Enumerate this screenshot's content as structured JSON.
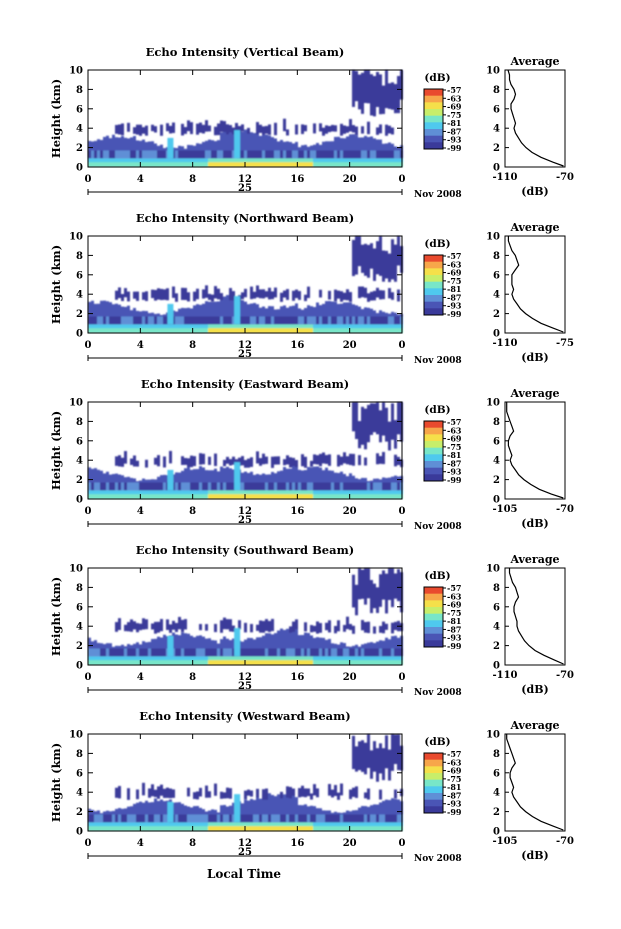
{
  "chart_data": [
    {
      "type": "heatmap",
      "title": "Echo Intensity (Vertical Beam)",
      "ylabel": "Height (km)",
      "ylim": [
        0,
        10
      ],
      "yticks": [
        "0",
        "2",
        "4",
        "6",
        "8",
        "10"
      ],
      "xlim": [
        0,
        24
      ],
      "xticks": [
        "0",
        "4",
        "8",
        "12",
        "16",
        "20",
        "0"
      ],
      "date_label": "25",
      "month_label": "Nov 2008",
      "colorbar": {
        "label": "(dB)",
        "ticks": [
          "-57",
          "-63",
          "-69",
          "-75",
          "-81",
          "-87",
          "-93",
          "-99"
        ]
      },
      "average": {
        "title": "Average",
        "xlabel": "(dB)",
        "xticks": [
          "-110",
          "-70"
        ],
        "xlim": [
          -110,
          -70
        ],
        "profile": [
          [
            0.1,
            -71
          ],
          [
            0.5,
            -78
          ],
          [
            1,
            -86
          ],
          [
            1.5,
            -92
          ],
          [
            2,
            -96
          ],
          [
            2.5,
            -99
          ],
          [
            3,
            -101
          ],
          [
            3.5,
            -103
          ],
          [
            4,
            -104
          ],
          [
            4.5,
            -103
          ],
          [
            5,
            -104
          ],
          [
            5.5,
            -105
          ],
          [
            6,
            -106
          ],
          [
            6.5,
            -106
          ],
          [
            7,
            -104
          ],
          [
            7.5,
            -103
          ],
          [
            8,
            -104
          ],
          [
            8.5,
            -106
          ],
          [
            9,
            -107
          ],
          [
            9.5,
            -107
          ],
          [
            10,
            -108
          ]
        ]
      }
    },
    {
      "type": "heatmap",
      "title": "Echo Intensity (Northward Beam)",
      "ylabel": "Height (km)",
      "ylim": [
        0,
        10
      ],
      "yticks": [
        "0",
        "2",
        "4",
        "6",
        "8",
        "10"
      ],
      "xlim": [
        0,
        24
      ],
      "xticks": [
        "0",
        "4",
        "8",
        "12",
        "16",
        "20",
        "0"
      ],
      "date_label": "25",
      "month_label": "Nov 2008",
      "colorbar": {
        "label": "(dB)",
        "ticks": [
          "-57",
          "-63",
          "-69",
          "-75",
          "-81",
          "-87",
          "-93",
          "-99"
        ]
      },
      "average": {
        "title": "Average",
        "xlabel": "(dB)",
        "xticks": [
          "-110",
          "-75"
        ],
        "xlim": [
          -110,
          -75
        ],
        "profile": [
          [
            0.1,
            -76
          ],
          [
            0.5,
            -82
          ],
          [
            1,
            -89
          ],
          [
            1.5,
            -94
          ],
          [
            2,
            -98
          ],
          [
            2.5,
            -101
          ],
          [
            3,
            -103
          ],
          [
            3.5,
            -105
          ],
          [
            4,
            -106
          ],
          [
            4.5,
            -105
          ],
          [
            5,
            -106
          ],
          [
            5.5,
            -106
          ],
          [
            6,
            -106
          ],
          [
            6.5,
            -104
          ],
          [
            7,
            -102
          ],
          [
            7.5,
            -103
          ],
          [
            8,
            -104
          ],
          [
            8.5,
            -106
          ],
          [
            9,
            -107
          ],
          [
            9.5,
            -108
          ],
          [
            10,
            -108
          ]
        ]
      }
    },
    {
      "type": "heatmap",
      "title": "Echo Intensity (Eastward Beam)",
      "ylabel": "Height (km)",
      "ylim": [
        0,
        10
      ],
      "yticks": [
        "0",
        "2",
        "4",
        "6",
        "8",
        "10"
      ],
      "xlim": [
        0,
        24
      ],
      "xticks": [
        "0",
        "4",
        "8",
        "12",
        "16",
        "20",
        "0"
      ],
      "date_label": "25",
      "month_label": "Nov 2008",
      "colorbar": {
        "label": "(dB)",
        "ticks": [
          "-57",
          "-63",
          "-69",
          "-75",
          "-81",
          "-87",
          "-93",
          "-99"
        ]
      },
      "average": {
        "title": "Average",
        "xlabel": "(dB)",
        "xticks": [
          "-105",
          "-70"
        ],
        "xlim": [
          -105,
          -70
        ],
        "profile": [
          [
            0.1,
            -71
          ],
          [
            0.5,
            -78
          ],
          [
            1,
            -85
          ],
          [
            1.5,
            -90
          ],
          [
            2,
            -94
          ],
          [
            2.5,
            -97
          ],
          [
            3,
            -99
          ],
          [
            3.5,
            -101
          ],
          [
            4,
            -102
          ],
          [
            4.5,
            -101
          ],
          [
            5,
            -102
          ],
          [
            5.5,
            -103
          ],
          [
            6,
            -103
          ],
          [
            6.5,
            -102
          ],
          [
            7,
            -100
          ],
          [
            7.5,
            -101
          ],
          [
            8,
            -102
          ],
          [
            8.5,
            -103
          ],
          [
            9,
            -104
          ],
          [
            9.5,
            -104
          ],
          [
            10,
            -104
          ]
        ]
      }
    },
    {
      "type": "heatmap",
      "title": "Echo Intensity (Southward Beam)",
      "ylabel": "Height (km)",
      "ylim": [
        0,
        10
      ],
      "yticks": [
        "0",
        "2",
        "4",
        "6",
        "8",
        "10"
      ],
      "xlim": [
        0,
        24
      ],
      "xticks": [
        "0",
        "4",
        "8",
        "12",
        "16",
        "20",
        "0"
      ],
      "date_label": "25",
      "month_label": "Nov 2008",
      "colorbar": {
        "label": "(dB)",
        "ticks": [
          "-57",
          "-63",
          "-69",
          "-75",
          "-81",
          "-87",
          "-93",
          "-99"
        ]
      },
      "average": {
        "title": "Average",
        "xlabel": "(dB)",
        "xticks": [
          "-110",
          "-70"
        ],
        "xlim": [
          -110,
          -70
        ],
        "profile": [
          [
            0.1,
            -71
          ],
          [
            0.5,
            -77
          ],
          [
            1,
            -84
          ],
          [
            1.5,
            -90
          ],
          [
            2,
            -94
          ],
          [
            2.5,
            -97
          ],
          [
            3,
            -99
          ],
          [
            3.5,
            -101
          ],
          [
            4,
            -102
          ],
          [
            4.5,
            -102
          ],
          [
            5,
            -103
          ],
          [
            5.5,
            -104
          ],
          [
            6,
            -104
          ],
          [
            6.5,
            -103
          ],
          [
            7,
            -101
          ],
          [
            7.5,
            -102
          ],
          [
            8,
            -103
          ],
          [
            8.5,
            -105
          ],
          [
            9,
            -106
          ],
          [
            9.5,
            -107
          ],
          [
            10,
            -107
          ]
        ]
      }
    },
    {
      "type": "heatmap",
      "title": "Echo Intensity (Westward Beam)",
      "ylabel": "Height (km)",
      "ylim": [
        0,
        10
      ],
      "yticks": [
        "0",
        "2",
        "4",
        "6",
        "8",
        "10"
      ],
      "xlim": [
        0,
        24
      ],
      "xticks": [
        "0",
        "4",
        "8",
        "12",
        "16",
        "20",
        "0"
      ],
      "date_label": "25",
      "month_label": "Nov 2008",
      "colorbar": {
        "label": "(dB)",
        "ticks": [
          "-57",
          "-63",
          "-69",
          "-75",
          "-81",
          "-87",
          "-93",
          "-99"
        ]
      },
      "average": {
        "title": "Average",
        "xlabel": "(dB)",
        "xticks": [
          "-105",
          "-70"
        ],
        "xlim": [
          -105,
          -70
        ],
        "profile": [
          [
            0.1,
            -71
          ],
          [
            0.5,
            -77
          ],
          [
            1,
            -84
          ],
          [
            1.5,
            -89
          ],
          [
            2,
            -93
          ],
          [
            2.5,
            -96
          ],
          [
            3,
            -98
          ],
          [
            3.5,
            -100
          ],
          [
            4,
            -101
          ],
          [
            4.5,
            -100
          ],
          [
            5,
            -101
          ],
          [
            5.5,
            -102
          ],
          [
            6,
            -102
          ],
          [
            6.5,
            -101
          ],
          [
            7,
            -99
          ],
          [
            7.5,
            -100
          ],
          [
            8,
            -101
          ],
          [
            8.5,
            -102
          ],
          [
            9,
            -103
          ],
          [
            9.5,
            -104
          ],
          [
            10,
            -104
          ]
        ]
      }
    }
  ],
  "xlabel_bottom": "Local Time",
  "colormap": [
    "#3a3a9a",
    "#4a55b5",
    "#5f8fd6",
    "#4fc9ee",
    "#78e6c8",
    "#c8ee6a",
    "#f5e04a",
    "#f7a64a",
    "#e94a2e"
  ]
}
